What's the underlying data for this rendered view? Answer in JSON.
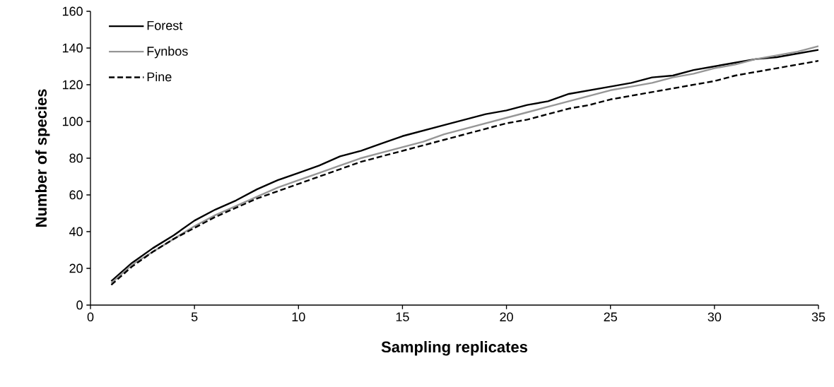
{
  "chart_data": {
    "type": "line",
    "xlabel": "Sampling replicates",
    "ylabel": "Number of species",
    "x": [
      1,
      2,
      3,
      4,
      5,
      6,
      7,
      8,
      9,
      10,
      11,
      12,
      13,
      14,
      15,
      16,
      17,
      18,
      19,
      20,
      21,
      22,
      23,
      24,
      25,
      26,
      27,
      28,
      29,
      30,
      31,
      32,
      33,
      34,
      35
    ],
    "series": [
      {
        "name": "Forest",
        "color": "#000000",
        "line_style": "solid",
        "values": [
          13,
          23,
          31,
          38,
          46,
          52,
          57,
          63,
          68,
          72,
          76,
          81,
          84,
          88,
          92,
          95,
          98,
          101,
          104,
          106,
          109,
          111,
          115,
          117,
          119,
          121,
          124,
          125,
          128,
          130,
          132,
          134,
          135,
          137,
          139
        ]
      },
      {
        "name": "Fynbos",
        "color": "#969696",
        "line_style": "solid",
        "values": [
          12,
          22,
          29,
          36,
          43,
          49,
          54,
          59,
          64,
          68,
          72,
          76,
          80,
          83,
          86,
          89,
          93,
          96,
          99,
          102,
          105,
          108,
          111,
          114,
          117,
          119,
          121,
          124,
          126,
          129,
          131,
          134,
          136,
          138,
          141
        ]
      },
      {
        "name": "Pine",
        "color": "#000000",
        "line_style": "dashed",
        "values": [
          11,
          21,
          29,
          36,
          42,
          48,
          53,
          58,
          62,
          66,
          70,
          74,
          78,
          81,
          84,
          87,
          90,
          93,
          96,
          99,
          101,
          104,
          107,
          109,
          112,
          114,
          116,
          118,
          120,
          122,
          125,
          127,
          129,
          131,
          133
        ]
      }
    ],
    "xlim": [
      0,
      35
    ],
    "xticks": [
      0,
      5,
      10,
      15,
      20,
      25,
      30,
      35
    ],
    "ylim": [
      0,
      160
    ],
    "yticks": [
      0,
      20,
      40,
      60,
      80,
      100,
      120,
      140,
      160
    ],
    "grid": false,
    "legend": "top left",
    "marker": "none"
  }
}
